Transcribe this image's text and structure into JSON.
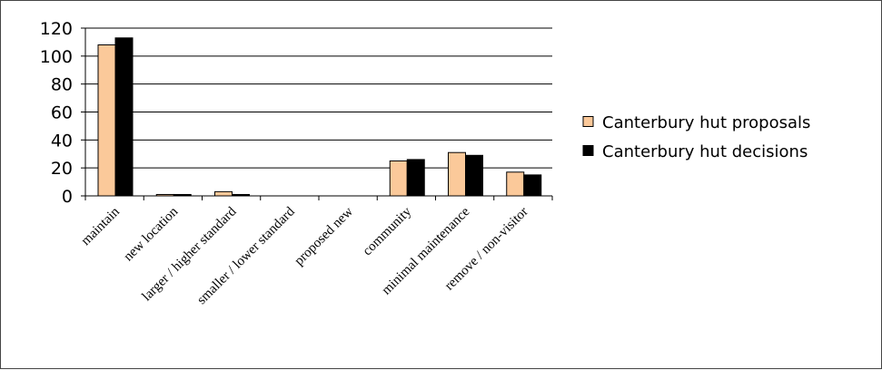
{
  "chart_data": {
    "type": "bar",
    "categories": [
      "maintain",
      "new location",
      "larger / higher standard",
      "smaller / lower standard",
      "proposed new",
      "community",
      "minimal maintenance",
      "remove / non-visitor"
    ],
    "series": [
      {
        "name": "Canterbury hut proposals",
        "color": "#FBC99A",
        "values": [
          108,
          1,
          3,
          0,
          0,
          25,
          31,
          17
        ]
      },
      {
        "name": "Canterbury hut decisions",
        "color": "#000000",
        "values": [
          113,
          1,
          1,
          0,
          0,
          26,
          29,
          15
        ]
      }
    ],
    "ylim": [
      0,
      120
    ],
    "yticks": [
      "0",
      "20",
      "40",
      "60",
      "80",
      "100",
      "120"
    ],
    "grid": true,
    "legend_position": "right"
  }
}
